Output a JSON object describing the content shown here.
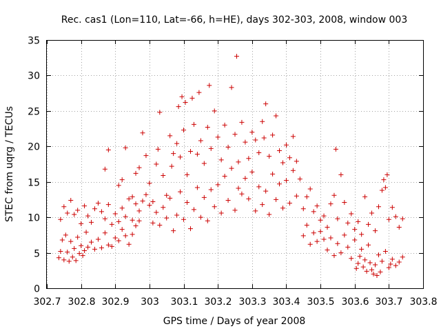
{
  "chart_data": {
    "type": "scatter",
    "title": "Rec. cas1 (Lon=110, Lat=-66, h=HE), days 302-303, 2008, window 003",
    "xlabel": "GPS time / Days of year 2008",
    "ylabel": "STEC from uqrg / TECUs",
    "xlim": [
      302.7,
      303.8
    ],
    "ylim": [
      0,
      35
    ],
    "xticks": [
      302.7,
      302.8,
      302.9,
      303.0,
      303.1,
      303.2,
      303.3,
      303.4,
      303.5,
      303.6,
      303.7,
      303.8
    ],
    "xtick_labels": [
      "302.7",
      "302.8",
      "302.9",
      "303",
      "303.1",
      "303.2",
      "303.3",
      "303.4",
      "303.5",
      "303.6",
      "303.7",
      "303.8"
    ],
    "yticks": [
      0,
      5,
      10,
      15,
      20,
      25,
      30,
      35
    ],
    "ytick_labels": [
      "0",
      "5",
      "10",
      "15",
      "20",
      "25",
      "30",
      "35"
    ],
    "grid": true,
    "marker": "+",
    "color": "#cc0000",
    "points": [
      [
        302.735,
        4.3
      ],
      [
        302.74,
        5.2
      ],
      [
        302.745,
        6.8
      ],
      [
        302.75,
        4.0
      ],
      [
        302.755,
        7.5
      ],
      [
        302.76,
        5.1
      ],
      [
        302.765,
        3.8
      ],
      [
        302.77,
        6.6
      ],
      [
        302.775,
        4.4
      ],
      [
        302.78,
        5.6
      ],
      [
        302.785,
        3.9
      ],
      [
        302.79,
        7.2
      ],
      [
        302.795,
        4.9
      ],
      [
        302.8,
        6.0
      ],
      [
        302.805,
        4.6
      ],
      [
        302.81,
        5.3
      ],
      [
        302.815,
        7.9
      ],
      [
        302.82,
        5.8
      ],
      [
        302.83,
        6.5
      ],
      [
        302.84,
        5.5
      ],
      [
        302.85,
        6.9
      ],
      [
        302.86,
        5.7
      ],
      [
        302.87,
        7.8
      ],
      [
        302.88,
        6.1
      ],
      [
        302.89,
        5.9
      ],
      [
        302.9,
        7.1
      ],
      [
        302.91,
        6.7
      ],
      [
        302.92,
        8.3
      ],
      [
        302.93,
        7.4
      ],
      [
        302.94,
        6.2
      ],
      [
        302.95,
        7.6
      ],
      [
        302.96,
        8.8
      ],
      [
        302.97,
        9.5
      ],
      [
        302.74,
        9.7
      ],
      [
        302.75,
        11.5
      ],
      [
        302.76,
        10.6
      ],
      [
        302.77,
        12.4
      ],
      [
        302.78,
        10.4
      ],
      [
        302.79,
        11.0
      ],
      [
        302.8,
        9.1
      ],
      [
        302.81,
        11.6
      ],
      [
        302.82,
        10.2
      ],
      [
        302.83,
        9.3
      ],
      [
        302.84,
        11.2
      ],
      [
        302.85,
        12.0
      ],
      [
        302.86,
        10.8
      ],
      [
        302.87,
        9.8
      ],
      [
        302.88,
        11.8
      ],
      [
        302.89,
        9.0
      ],
      [
        302.9,
        10.5
      ],
      [
        302.91,
        9.4
      ],
      [
        302.92,
        11.3
      ],
      [
        302.93,
        10.1
      ],
      [
        302.94,
        12.6
      ],
      [
        302.95,
        9.6
      ],
      [
        302.96,
        11.9
      ],
      [
        302.97,
        10.9
      ],
      [
        302.98,
        12.3
      ],
      [
        302.99,
        13.2
      ],
      [
        303.0,
        11.7
      ],
      [
        302.87,
        16.8
      ],
      [
        302.88,
        19.5
      ],
      [
        302.91,
        14.5
      ],
      [
        302.92,
        15.3
      ],
      [
        302.93,
        19.8
      ],
      [
        302.95,
        12.9
      ],
      [
        302.96,
        16.2
      ],
      [
        302.97,
        17.0
      ],
      [
        302.98,
        21.9
      ],
      [
        302.99,
        18.7
      ],
      [
        303.0,
        14.8
      ],
      [
        303.01,
        12.2
      ],
      [
        303.02,
        17.5
      ],
      [
        303.025,
        19.6
      ],
      [
        303.03,
        24.8
      ],
      [
        303.04,
        15.9
      ],
      [
        303.05,
        13.1
      ],
      [
        303.06,
        21.5
      ],
      [
        303.065,
        17.2
      ],
      [
        303.07,
        19.0
      ],
      [
        303.08,
        20.4
      ],
      [
        303.085,
        25.6
      ],
      [
        303.09,
        18.5
      ],
      [
        303.095,
        27.0
      ],
      [
        303.1,
        22.3
      ],
      [
        303.105,
        26.2
      ],
      [
        303.11,
        16.0
      ],
      [
        303.12,
        19.3
      ],
      [
        303.125,
        26.8
      ],
      [
        303.13,
        23.1
      ],
      [
        303.14,
        18.9
      ],
      [
        303.145,
        27.6
      ],
      [
        303.15,
        20.8
      ],
      [
        303.16,
        17.6
      ],
      [
        303.17,
        22.7
      ],
      [
        303.175,
        28.6
      ],
      [
        303.18,
        19.7
      ],
      [
        303.19,
        25.0
      ],
      [
        303.2,
        21.3
      ],
      [
        303.21,
        18.1
      ],
      [
        303.22,
        23.0
      ],
      [
        303.23,
        19.9
      ],
      [
        303.24,
        28.3
      ],
      [
        303.25,
        21.7
      ],
      [
        303.255,
        32.7
      ],
      [
        303.26,
        17.8
      ],
      [
        303.27,
        23.4
      ],
      [
        303.28,
        20.6
      ],
      [
        303.29,
        18.3
      ],
      [
        303.3,
        22.0
      ],
      [
        303.31,
        20.9
      ],
      [
        303.32,
        19.1
      ],
      [
        303.33,
        23.5
      ],
      [
        303.335,
        21.2
      ],
      [
        303.34,
        26.0
      ],
      [
        303.35,
        18.6
      ],
      [
        303.36,
        21.6
      ],
      [
        303.37,
        24.3
      ],
      [
        303.38,
        19.4
      ],
      [
        303.39,
        17.7
      ],
      [
        303.4,
        20.2
      ],
      [
        303.41,
        18.4
      ],
      [
        303.42,
        21.4
      ],
      [
        303.43,
        17.9
      ],
      [
        303.01,
        9.2
      ],
      [
        303.02,
        10.7
      ],
      [
        303.03,
        8.9
      ],
      [
        303.04,
        11.4
      ],
      [
        303.05,
        9.9
      ],
      [
        303.06,
        12.7
      ],
      [
        303.07,
        8.1
      ],
      [
        303.08,
        10.3
      ],
      [
        303.09,
        13.6
      ],
      [
        303.1,
        9.7
      ],
      [
        303.11,
        12.1
      ],
      [
        303.12,
        8.4
      ],
      [
        303.13,
        11.1
      ],
      [
        303.14,
        14.2
      ],
      [
        303.15,
        10.0
      ],
      [
        303.16,
        12.8
      ],
      [
        303.17,
        9.5
      ],
      [
        303.18,
        13.9
      ],
      [
        303.19,
        11.5
      ],
      [
        303.2,
        14.6
      ],
      [
        303.21,
        10.6
      ],
      [
        303.22,
        15.8
      ],
      [
        303.23,
        12.4
      ],
      [
        303.24,
        16.9
      ],
      [
        303.25,
        11.0
      ],
      [
        303.26,
        14.1
      ],
      [
        303.27,
        13.3
      ],
      [
        303.28,
        15.5
      ],
      [
        303.29,
        12.6
      ],
      [
        303.3,
        16.4
      ],
      [
        303.31,
        10.9
      ],
      [
        303.32,
        14.3
      ],
      [
        303.33,
        11.8
      ],
      [
        303.34,
        13.7
      ],
      [
        303.35,
        10.4
      ],
      [
        303.36,
        16.1
      ],
      [
        303.37,
        12.5
      ],
      [
        303.38,
        14.7
      ],
      [
        303.39,
        11.3
      ],
      [
        303.4,
        15.2
      ],
      [
        303.41,
        12.0
      ],
      [
        303.42,
        16.6
      ],
      [
        303.43,
        13.0
      ],
      [
        303.44,
        15.4
      ],
      [
        303.45,
        11.2
      ],
      [
        303.46,
        12.9
      ],
      [
        303.47,
        14.0
      ],
      [
        303.48,
        10.8
      ],
      [
        303.49,
        11.6
      ],
      [
        303.5,
        9.6
      ],
      [
        303.51,
        10.2
      ],
      [
        303.52,
        8.6
      ],
      [
        303.53,
        11.9
      ],
      [
        303.54,
        13.1
      ],
      [
        303.545,
        19.6
      ],
      [
        303.55,
        9.8
      ],
      [
        303.56,
        16.0
      ],
      [
        303.57,
        12.1
      ],
      [
        303.58,
        9.2
      ],
      [
        303.59,
        10.5
      ],
      [
        303.6,
        8.3
      ],
      [
        303.61,
        9.4
      ],
      [
        303.62,
        7.6
      ],
      [
        303.63,
        12.9
      ],
      [
        303.64,
        9.0
      ],
      [
        303.65,
        10.6
      ],
      [
        303.66,
        8.1
      ],
      [
        303.67,
        11.5
      ],
      [
        303.68,
        13.8
      ],
      [
        303.685,
        15.3
      ],
      [
        303.69,
        14.2
      ],
      [
        303.695,
        16.0
      ],
      [
        303.7,
        9.7
      ],
      [
        303.71,
        11.4
      ],
      [
        303.72,
        10.1
      ],
      [
        303.73,
        8.6
      ],
      [
        303.74,
        9.8
      ],
      [
        303.45,
        7.4
      ],
      [
        303.46,
        8.9
      ],
      [
        303.47,
        6.2
      ],
      [
        303.48,
        7.8
      ],
      [
        303.49,
        6.6
      ],
      [
        303.5,
        8.0
      ],
      [
        303.51,
        6.9
      ],
      [
        303.52,
        5.4
      ],
      [
        303.53,
        7.1
      ],
      [
        303.54,
        4.6
      ],
      [
        303.55,
        6.3
      ],
      [
        303.56,
        5.0
      ],
      [
        303.57,
        7.5
      ],
      [
        303.58,
        5.8
      ],
      [
        303.59,
        4.2
      ],
      [
        303.6,
        6.8
      ],
      [
        303.61,
        3.5
      ],
      [
        303.62,
        5.5
      ],
      [
        303.63,
        4.0
      ],
      [
        303.64,
        6.1
      ],
      [
        303.65,
        2.6
      ],
      [
        303.655,
        2.0
      ],
      [
        303.66,
        3.3
      ],
      [
        303.665,
        1.8
      ],
      [
        303.67,
        4.7
      ],
      [
        303.675,
        2.3
      ],
      [
        303.68,
        3.8
      ],
      [
        303.69,
        5.2
      ],
      [
        303.7,
        2.9
      ],
      [
        303.71,
        4.1
      ],
      [
        303.72,
        3.2
      ],
      [
        303.73,
        3.7
      ],
      [
        303.74,
        4.4
      ],
      [
        303.605,
        2.8
      ],
      [
        303.615,
        4.5
      ],
      [
        303.625,
        3.0
      ],
      [
        303.635,
        2.4
      ],
      [
        303.645,
        3.6
      ],
      [
        303.705,
        3.4
      ]
    ]
  }
}
